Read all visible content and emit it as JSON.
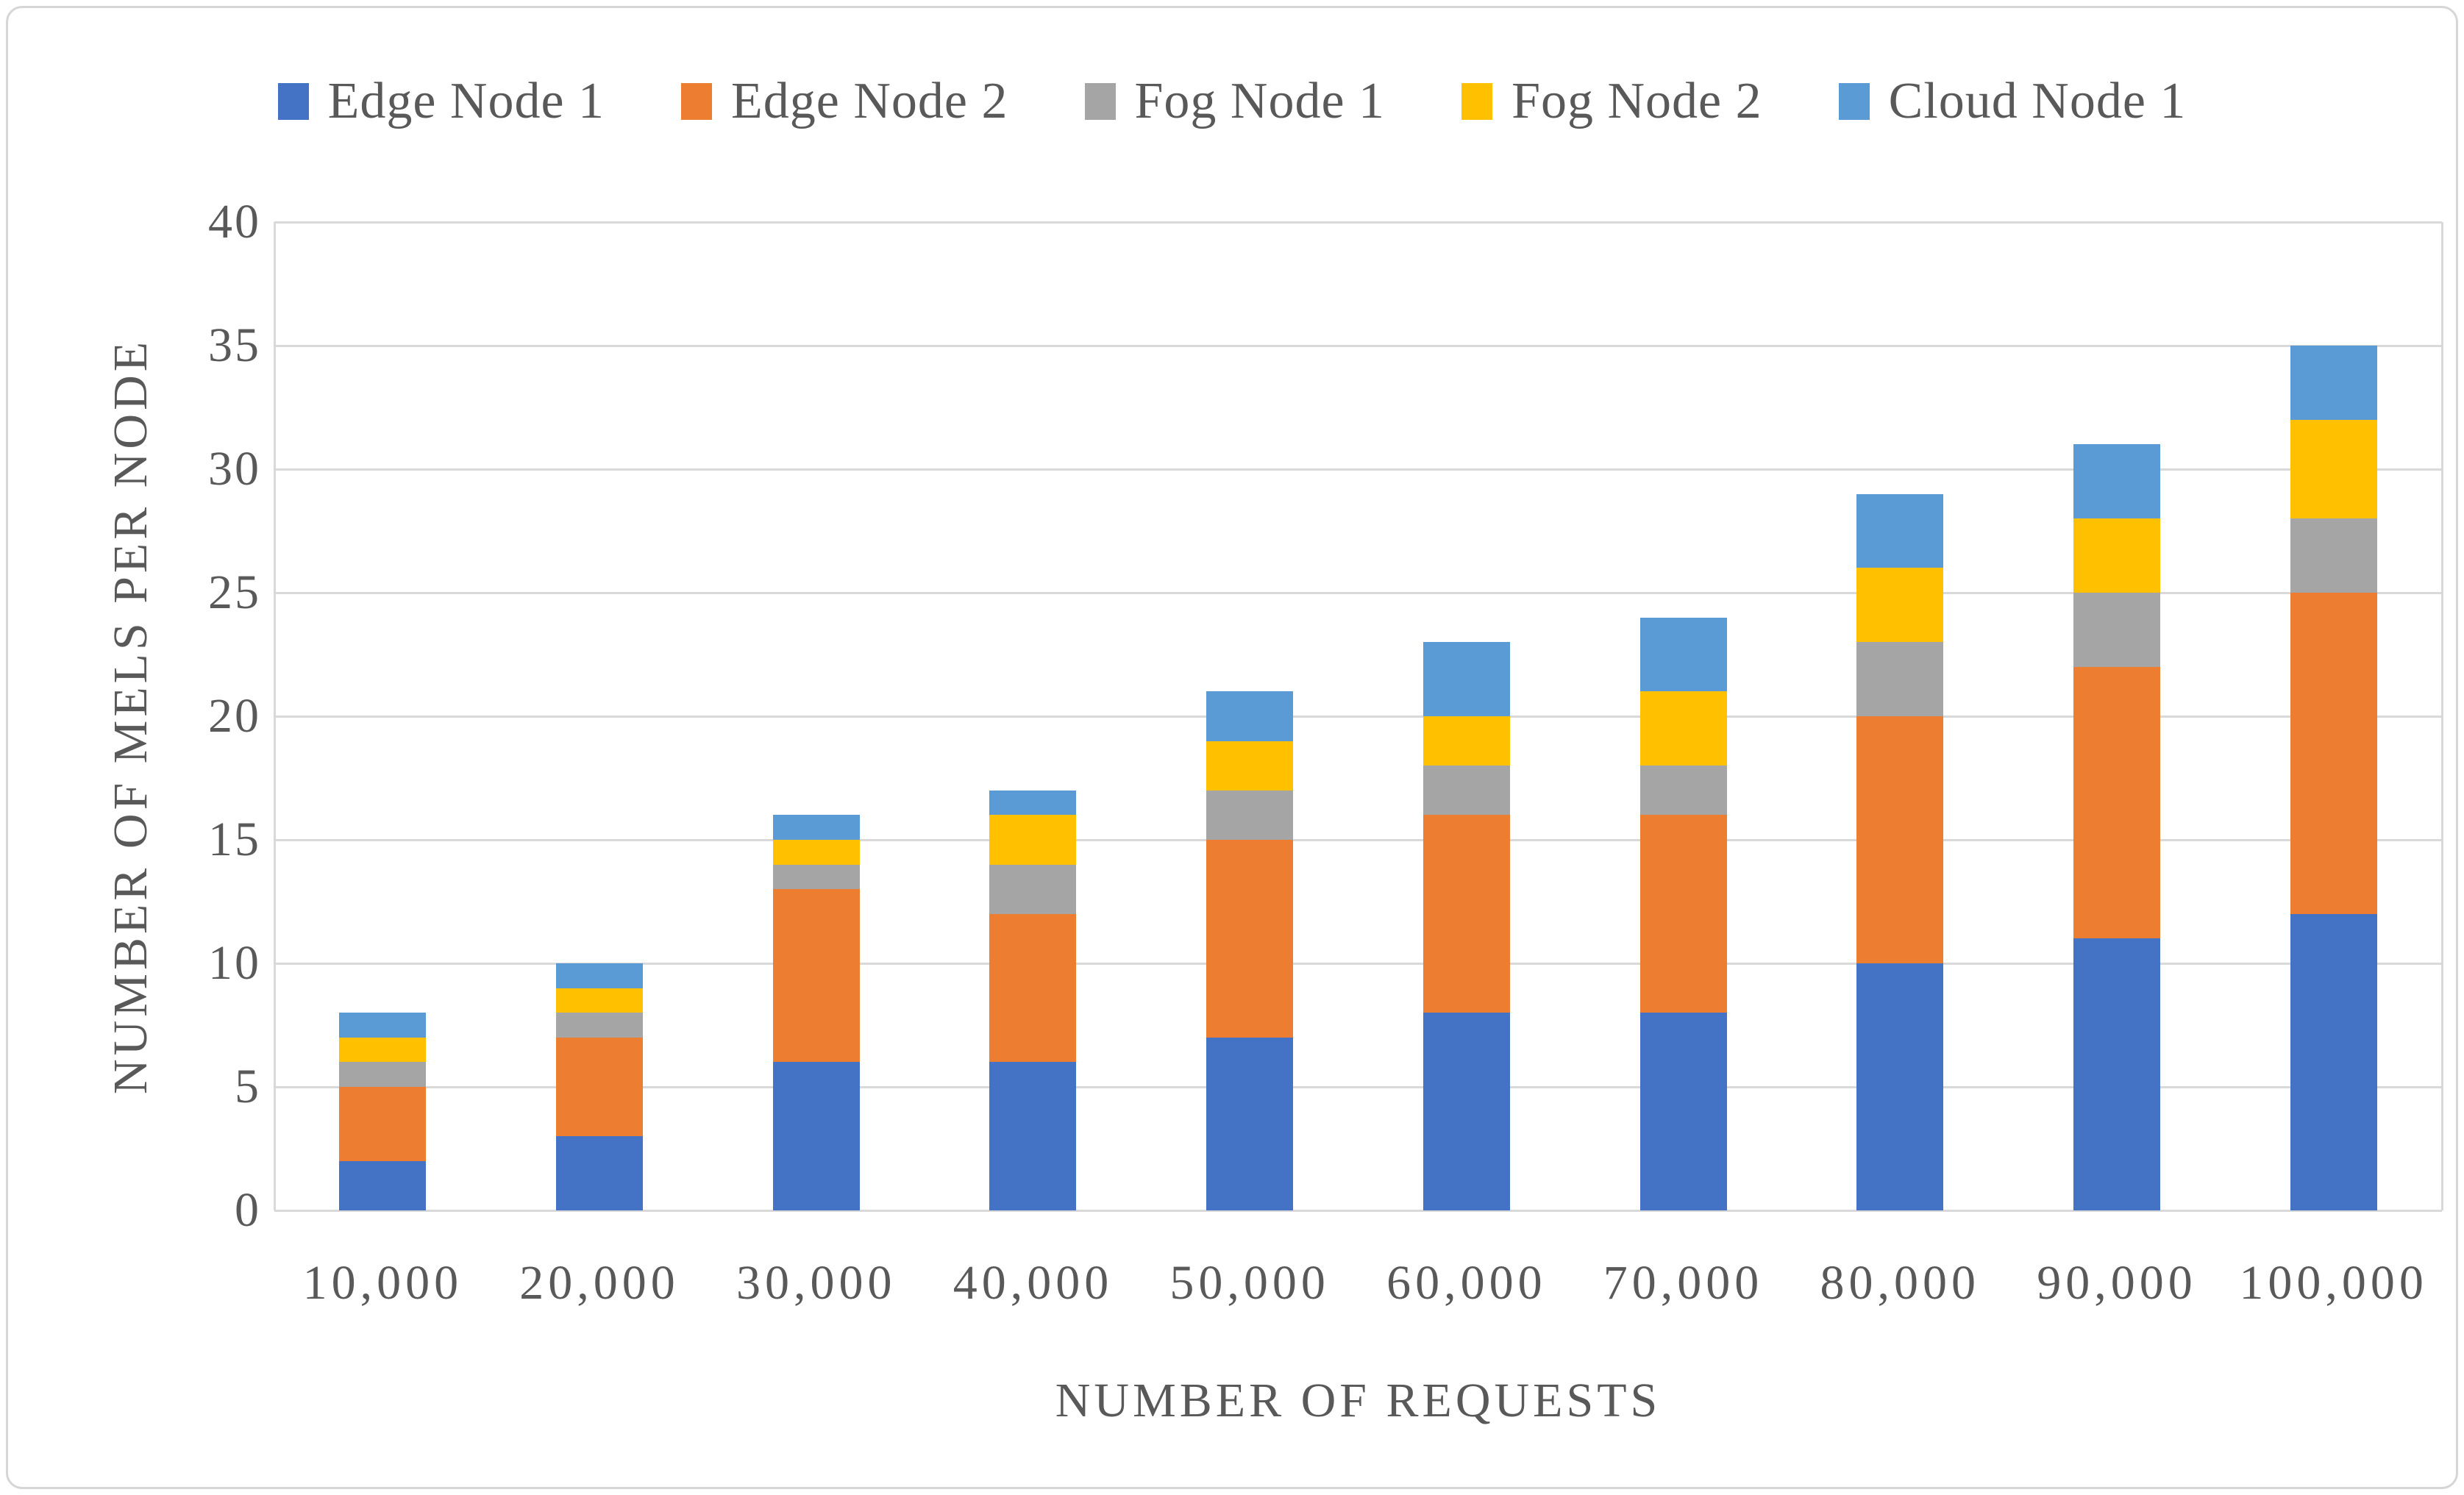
{
  "legend": {
    "items": [
      {
        "label": "Edge Node 1",
        "color": "#4472C4"
      },
      {
        "label": "Edge Node 2",
        "color": "#ED7D31"
      },
      {
        "label": "Fog Node 1",
        "color": "#A5A5A5"
      },
      {
        "label": "Fog Node 2",
        "color": "#FFC000"
      },
      {
        "label": "Cloud Node 1",
        "color": "#5B9BD5"
      }
    ]
  },
  "axes": {
    "x_title": "NUMBER OF REQUESTS",
    "y_title": "NUMBER OF MELS PER NODE"
  },
  "chart_data": {
    "type": "bar",
    "stacked": true,
    "categories": [
      "10,000",
      "20,000",
      "30,000",
      "40,000",
      "50,000",
      "60,000",
      "70,000",
      "80,000",
      "90,000",
      "100,000"
    ],
    "series": [
      {
        "name": "Edge Node 1",
        "color": "#4472C4",
        "values": [
          2,
          3,
          6,
          6,
          7,
          8,
          8,
          10,
          11,
          12
        ]
      },
      {
        "name": "Edge Node 2",
        "color": "#ED7D31",
        "values": [
          3,
          4,
          7,
          6,
          8,
          8,
          8,
          10,
          11,
          13
        ]
      },
      {
        "name": "Fog Node 1",
        "color": "#A5A5A5",
        "values": [
          1,
          1,
          1,
          2,
          2,
          2,
          2,
          3,
          3,
          3
        ]
      },
      {
        "name": "Fog Node 2",
        "color": "#FFC000",
        "values": [
          1,
          1,
          1,
          2,
          2,
          2,
          3,
          3,
          3,
          4
        ]
      },
      {
        "name": "Cloud Node 1",
        "color": "#5B9BD5",
        "values": [
          1,
          1,
          1,
          1,
          2,
          3,
          3,
          3,
          3,
          3
        ]
      }
    ],
    "stack_totals": [
      8,
      10,
      16,
      17,
      21,
      23,
      24,
      29,
      31,
      35
    ],
    "xlabel": "NUMBER OF REQUESTS",
    "ylabel": "NUMBER OF MELS PER NODE",
    "ylim": [
      0,
      40
    ],
    "ytick_step": 5,
    "yticks": [
      "0",
      "5",
      "10",
      "15",
      "20",
      "25",
      "30",
      "35",
      "40"
    ],
    "grid": true,
    "legend_position": "top",
    "colors": {
      "text": "#595959",
      "gridline": "#D9D9D9"
    }
  }
}
